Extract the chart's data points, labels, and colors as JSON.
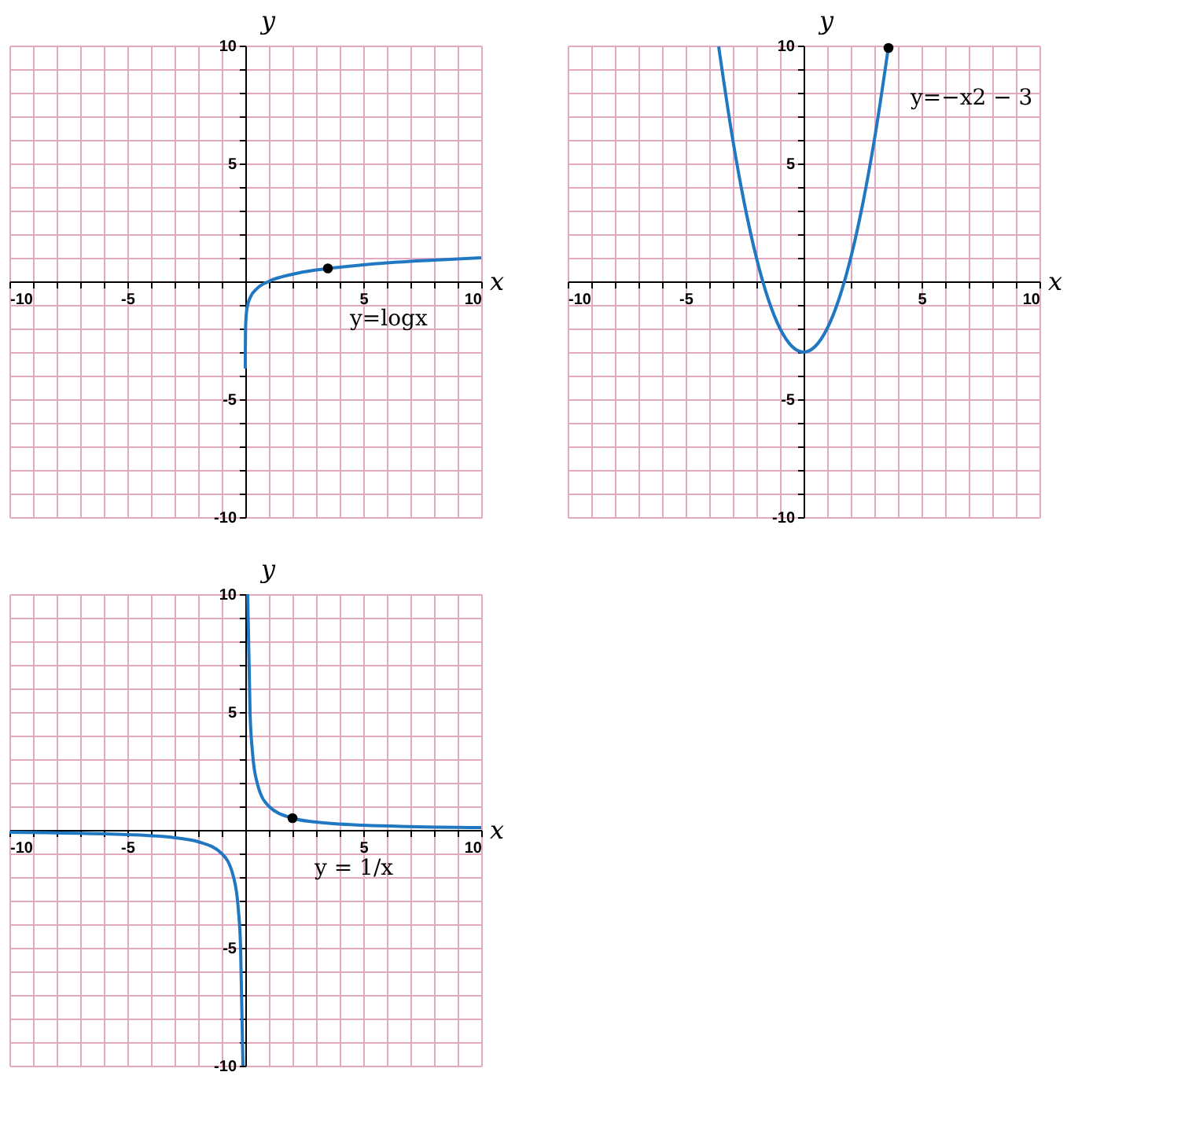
{
  "chart_data": [
    {
      "type": "line",
      "xlabel": "x",
      "ylabel": "y",
      "xlim": [
        -10,
        10
      ],
      "ylim": [
        -10,
        10
      ],
      "grid": true,
      "xticks": [
        -10,
        {
          "value": -9,
          "label": null
        },
        {
          "value": -8,
          "label": null
        },
        {
          "value": -7,
          "label": null
        },
        {
          "value": -6,
          "label": null
        },
        -5,
        {
          "value": -4,
          "label": null
        },
        {
          "value": -3,
          "label": null
        },
        {
          "value": -2,
          "label": null
        },
        {
          "value": -1,
          "label": null
        },
        {
          "value": 0,
          "label": null
        },
        {
          "value": 1,
          "label": null
        },
        {
          "value": 2,
          "label": null
        },
        {
          "value": 3,
          "label": null
        },
        {
          "value": 4,
          "label": null
        },
        5,
        {
          "value": 6,
          "label": null
        },
        {
          "value": 7,
          "label": null
        },
        {
          "value": 8,
          "label": null
        },
        {
          "value": 9,
          "label": null
        },
        10
      ],
      "yticks": [
        -10,
        {
          "value": -9,
          "label": null
        },
        {
          "value": -8,
          "label": null
        },
        {
          "value": -7,
          "label": null
        },
        {
          "value": -6,
          "label": null
        },
        -5,
        {
          "value": -4,
          "label": null
        },
        {
          "value": -3,
          "label": null
        },
        {
          "value": -2,
          "label": null
        },
        {
          "value": -1,
          "label": null
        },
        {
          "value": 0,
          "label": null
        },
        {
          "value": 1,
          "label": null
        },
        {
          "value": 2,
          "label": null
        },
        {
          "value": 3,
          "label": null
        },
        {
          "value": 4,
          "label": null
        },
        5,
        {
          "value": 6,
          "label": null
        },
        {
          "value": 7,
          "label": null
        },
        {
          "value": 8,
          "label": null
        },
        {
          "value": 9,
          "label": null
        },
        10
      ],
      "series": [
        {
          "color": "#1f78c1",
          "x": [
            0.0002,
            0.001,
            0.01,
            0.05,
            0.1,
            0.2,
            0.5,
            1,
            2,
            3,
            4,
            5,
            6,
            7,
            8,
            9,
            10
          ],
          "values": [
            -3.7,
            -3,
            -2,
            -1.3,
            -1,
            -0.7,
            -0.3,
            0,
            0.3,
            0.48,
            0.6,
            0.7,
            0.78,
            0.85,
            0.9,
            0.95,
            1
          ]
        }
      ],
      "annotations": [
        {
          "text": "y=logx",
          "x": 3.5,
          "y": 0.55
        }
      ]
    },
    {
      "type": "line",
      "xlabel": "x",
      "ylabel": "y",
      "xlim": [
        -10,
        10
      ],
      "ylim": [
        -10,
        10
      ],
      "grid": true,
      "xticks": [
        -10,
        {
          "value": -9,
          "label": null
        },
        {
          "value": -8,
          "label": null
        },
        {
          "value": -7,
          "label": null
        },
        {
          "value": -6,
          "label": null
        },
        -5,
        {
          "value": -4,
          "label": null
        },
        {
          "value": -3,
          "label": null
        },
        {
          "value": -2,
          "label": null
        },
        {
          "value": -1,
          "label": null
        },
        {
          "value": 0,
          "label": null
        },
        {
          "value": 1,
          "label": null
        },
        {
          "value": 2,
          "label": null
        },
        {
          "value": 3,
          "label": null
        },
        {
          "value": 4,
          "label": null
        },
        5,
        {
          "value": 6,
          "label": null
        },
        {
          "value": 7,
          "label": null
        },
        {
          "value": 8,
          "label": null
        },
        {
          "value": 9,
          "label": null
        },
        10
      ],
      "yticks": [
        -10,
        {
          "value": -9,
          "label": null
        },
        {
          "value": -8,
          "label": null
        },
        {
          "value": -7,
          "label": null
        },
        {
          "value": -6,
          "label": null
        },
        -5,
        {
          "value": -4,
          "label": null
        },
        {
          "value": -3,
          "label": null
        },
        {
          "value": -2,
          "label": null
        },
        {
          "value": -1,
          "label": null
        },
        {
          "value": 0,
          "label": null
        },
        {
          "value": 1,
          "label": null
        },
        {
          "value": 2,
          "label": null
        },
        {
          "value": 3,
          "label": null
        },
        {
          "value": 4,
          "label": null
        },
        5,
        {
          "value": 6,
          "label": null
        },
        {
          "value": 7,
          "label": null
        },
        {
          "value": 8,
          "label": null
        },
        {
          "value": 9,
          "label": null
        },
        10
      ],
      "series": [
        {
          "color": "#1f78c1",
          "x": [
            -3.6,
            -3,
            -2.5,
            -2,
            -1.5,
            -1,
            -0.5,
            0,
            0.5,
            1,
            1.5,
            2,
            2.5,
            3,
            3.6
          ],
          "values": [
            9.96,
            6,
            3.25,
            1,
            -0.75,
            -2,
            -2.75,
            -3,
            -2.75,
            -2,
            -0.75,
            1,
            3.25,
            6,
            9.96
          ]
        }
      ],
      "annotations": [
        {
          "text": "y=−x2 − 3",
          "x": 3.6,
          "y": 9.9
        }
      ]
    },
    {
      "type": "line",
      "xlabel": "x",
      "ylabel": "y",
      "xlim": [
        -10,
        10
      ],
      "ylim": [
        -10,
        10
      ],
      "grid": true,
      "xticks": [
        -10,
        {
          "value": -9,
          "label": null
        },
        {
          "value": -8,
          "label": null
        },
        {
          "value": -7,
          "label": null
        },
        {
          "value": -6,
          "label": null
        },
        -5,
        {
          "value": -4,
          "label": null
        },
        {
          "value": -3,
          "label": null
        },
        {
          "value": -2,
          "label": null
        },
        {
          "value": -1,
          "label": null
        },
        {
          "value": 0,
          "label": null
        },
        {
          "value": 1,
          "label": null
        },
        {
          "value": 2,
          "label": null
        },
        {
          "value": 3,
          "label": null
        },
        {
          "value": 4,
          "label": null
        },
        5,
        {
          "value": 6,
          "label": null
        },
        {
          "value": 7,
          "label": null
        },
        {
          "value": 8,
          "label": null
        },
        {
          "value": 9,
          "label": null
        },
        10
      ],
      "yticks": [
        -10,
        {
          "value": -9,
          "label": null
        },
        {
          "value": -8,
          "label": null
        },
        {
          "value": -7,
          "label": null
        },
        {
          "value": -6,
          "label": null
        },
        -5,
        {
          "value": -4,
          "label": null
        },
        {
          "value": -3,
          "label": null
        },
        {
          "value": -2,
          "label": null
        },
        {
          "value": -1,
          "label": null
        },
        {
          "value": 0,
          "label": null
        },
        {
          "value": 1,
          "label": null
        },
        {
          "value": 2,
          "label": null
        },
        {
          "value": 3,
          "label": null
        },
        {
          "value": 4,
          "label": null
        },
        5,
        {
          "value": 6,
          "label": null
        },
        {
          "value": 7,
          "label": null
        },
        {
          "value": 8,
          "label": null
        },
        {
          "value": 9,
          "label": null
        },
        10
      ],
      "series": [
        {
          "color": "#1f78c1",
          "x": [
            -10,
            -5,
            -3,
            -2,
            -1,
            -0.5,
            -0.3,
            -0.2,
            -0.1
          ],
          "values": [
            -0.1,
            -0.2,
            -0.33,
            -0.5,
            -1,
            -2,
            -3.33,
            -5,
            -10
          ]
        },
        {
          "color": "#1f78c1",
          "x": [
            0.1,
            0.2,
            0.3,
            0.5,
            1,
            2,
            3,
            5,
            10
          ],
          "values": [
            10,
            5,
            3.33,
            2,
            1,
            0.5,
            0.33,
            0.2,
            0.1
          ]
        }
      ],
      "annotations": [
        {
          "text": "y = 1/x",
          "x": 2,
          "y": 0.5
        }
      ]
    }
  ]
}
